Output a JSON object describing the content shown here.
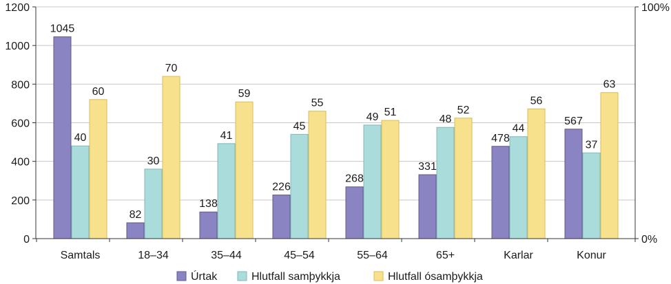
{
  "chart_data": {
    "type": "bar",
    "categories": [
      "Samtals",
      "18–34",
      "35–44",
      "45–54",
      "55–64",
      "65+",
      "Karlar",
      "Konur"
    ],
    "series": [
      {
        "name": "Úrtak",
        "axis": "left",
        "color": "#8b84c2",
        "stroke": "#5f588f",
        "values": [
          1045,
          82,
          138,
          226,
          268,
          331,
          478,
          567
        ]
      },
      {
        "name": "Hlutfall samþykkja",
        "axis": "right",
        "color": "#aadcdc",
        "stroke": "#7fb9b9",
        "values": [
          40,
          30,
          41,
          45,
          49,
          48,
          44,
          37
        ]
      },
      {
        "name": "Hlutfall ósamþykkja",
        "axis": "right",
        "color": "#f7e18c",
        "stroke": "#d8bd57",
        "values": [
          60,
          70,
          59,
          55,
          51,
          52,
          56,
          63
        ]
      }
    ],
    "left_axis": {
      "ylim": [
        0,
        1200
      ],
      "ticks": [
        "0",
        "200",
        "400",
        "600",
        "800",
        "1000",
        "1200"
      ]
    },
    "right_axis": {
      "ylim": [
        0,
        100
      ],
      "ticks": [
        "0%",
        "100%"
      ]
    },
    "grid": true,
    "legend": "bottom-center"
  }
}
